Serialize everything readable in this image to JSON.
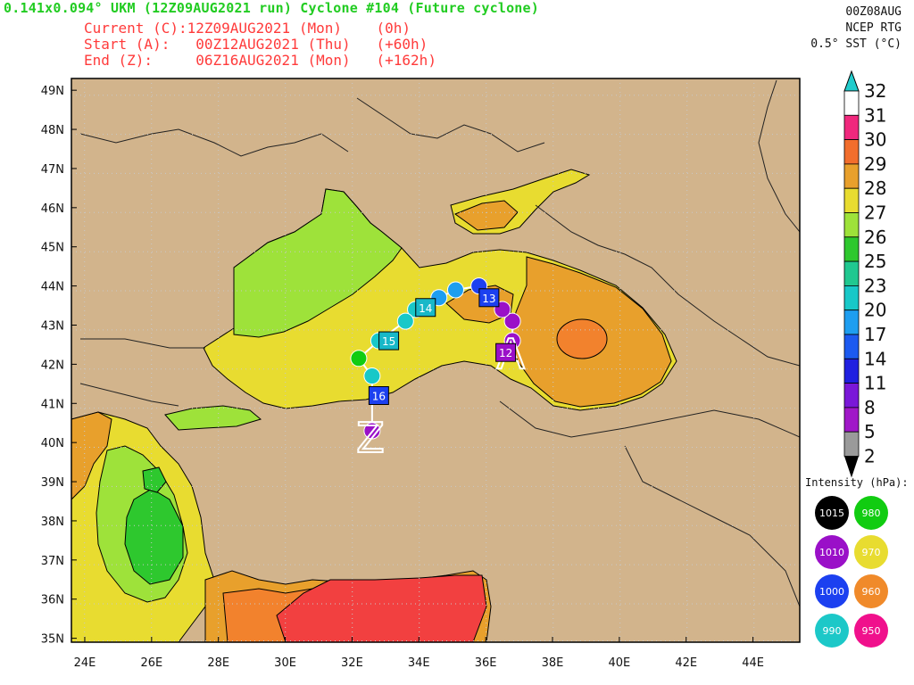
{
  "header": {
    "title": "0.141x0.094° UKM (12Z09AUG2021 run) Cyclone #104 (Future cyclone)",
    "current": "Current (C):12Z09AUG2021 (Mon)    (0h)",
    "start": "Start (A):   00Z12AUG2021 (Thu)   (+60h)",
    "end": "End (Z):     06Z16AUG2021 (Mon)   (+162h)"
  },
  "top_right": {
    "date": "00Z08AUG",
    "source": "NCEP RTG",
    "sst": "0.5° SST (°C)"
  },
  "axes": {
    "lat_labels": [
      "49N",
      "48N",
      "47N",
      "46N",
      "45N",
      "44N",
      "43N",
      "42N",
      "41N",
      "40N",
      "39N",
      "38N",
      "37N",
      "36N",
      "35N"
    ],
    "lon_labels": [
      "24E",
      "26E",
      "28E",
      "30E",
      "32E",
      "34E",
      "36E",
      "38E",
      "40E",
      "42E",
      "44E"
    ]
  },
  "colorbar": {
    "labels": [
      "32",
      "31",
      "30",
      "29",
      "28",
      "27",
      "26",
      "25",
      "23",
      "20",
      "17",
      "14",
      "11",
      "8",
      "5",
      "2"
    ],
    "colors": [
      "#ffffff",
      "#f0287d",
      "#f26e2d",
      "#e8a02c",
      "#e8dc30",
      "#9ee23a",
      "#2ec82e",
      "#20c890",
      "#18c8c8",
      "#1e9ef0",
      "#1c5af0",
      "#2020e0",
      "#7a18d8",
      "#a018c8",
      "#9a9a9a"
    ],
    "top_arrow_color": "#22cccc",
    "bottom_arrow_color": "#000000"
  },
  "intensity_legend": {
    "title": "Intensity (hPa):",
    "items": [
      {
        "label": "1015",
        "color": "#000000",
        "text_color": "#ffffff"
      },
      {
        "label": "980",
        "color": "#11cc11",
        "text_color": "#ffffff"
      },
      {
        "label": "1010",
        "color": "#9a10c8",
        "text_color": "#ffffff"
      },
      {
        "label": "970",
        "color": "#e8dc30",
        "text_color": "#ffffff"
      },
      {
        "label": "1000",
        "color": "#1c40f0",
        "text_color": "#ffffff"
      },
      {
        "label": "960",
        "color": "#f08a2a",
        "text_color": "#ffffff"
      },
      {
        "label": "990",
        "color": "#1cc8c8",
        "text_color": "#ffffff"
      },
      {
        "label": "950",
        "color": "#f0108c",
        "text_color": "#ffffff"
      }
    ]
  },
  "track": {
    "start_marker": "A",
    "end_marker": "Z",
    "day_labels": [
      {
        "text": "12",
        "lon": 36.6,
        "lat": 42.3,
        "color": "#9a10c8"
      },
      {
        "text": "13",
        "lon": 36.1,
        "lat": 43.7,
        "color": "#1c40f0"
      },
      {
        "text": "14",
        "lon": 34.2,
        "lat": 43.45,
        "color": "#18b8c8"
      },
      {
        "text": "15",
        "lon": 33.1,
        "lat": 42.6,
        "color": "#18b8c8"
      },
      {
        "text": "16",
        "lon": 32.8,
        "lat": 41.2,
        "color": "#1c40f0"
      }
    ],
    "points": [
      {
        "lon": 36.8,
        "lat": 42.6,
        "color": "#9a10c8"
      },
      {
        "lon": 36.8,
        "lat": 43.1,
        "color": "#9a10c8"
      },
      {
        "lon": 36.5,
        "lat": 43.4,
        "color": "#9a10c8"
      },
      {
        "lon": 35.8,
        "lat": 44.0,
        "color": "#1c40f0"
      },
      {
        "lon": 35.1,
        "lat": 43.9,
        "color": "#1e9ef0"
      },
      {
        "lon": 34.6,
        "lat": 43.7,
        "color": "#1e9ef0"
      },
      {
        "lon": 33.9,
        "lat": 43.4,
        "color": "#18c8c8"
      },
      {
        "lon": 33.6,
        "lat": 43.1,
        "color": "#18c8c8"
      },
      {
        "lon": 32.8,
        "lat": 42.6,
        "color": "#18c8c8"
      },
      {
        "lon": 32.2,
        "lat": 42.15,
        "color": "#11cc11"
      },
      {
        "lon": 32.6,
        "lat": 41.7,
        "color": "#18c8c8"
      },
      {
        "lon": 32.6,
        "lat": 40.3,
        "color": "#9a10c8"
      }
    ]
  }
}
